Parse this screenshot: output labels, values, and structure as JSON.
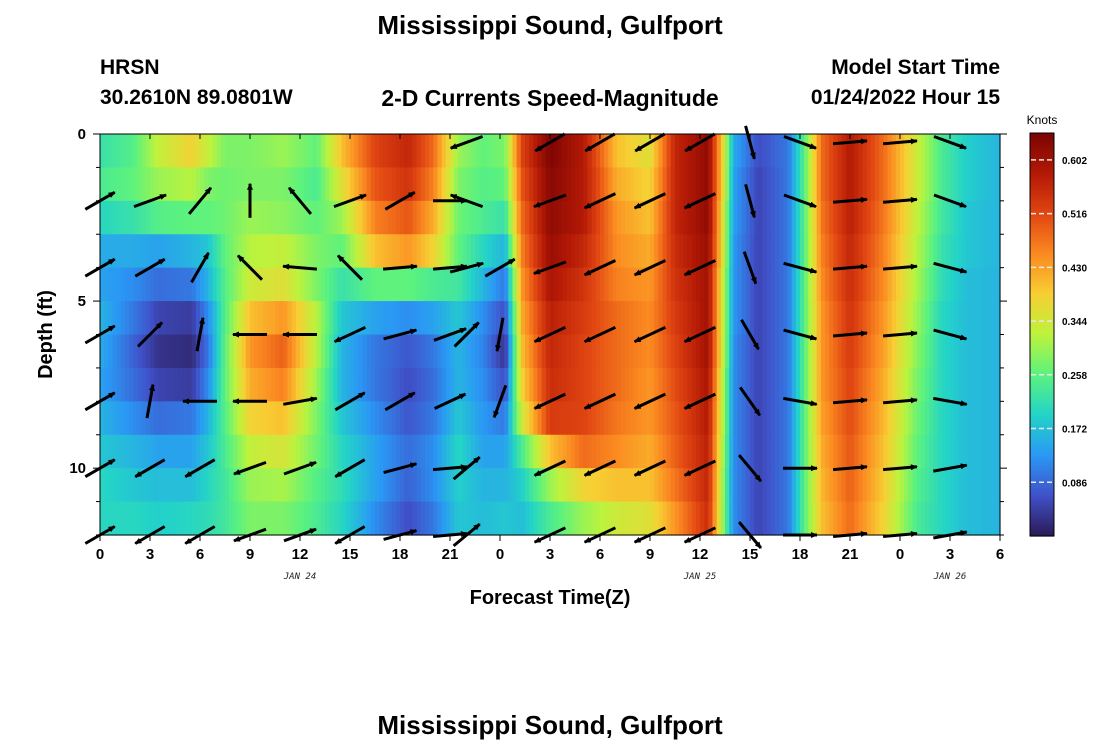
{
  "page": {
    "title_top": "Mississippi Sound, Gulfport",
    "title_bottom": "Mississippi Sound, Gulfport",
    "station": "HRSN",
    "coords": "30.2610N  89.0801W",
    "model_start_label": "Model Start Time",
    "model_start_value": "01/24/2022 Hour 15",
    "subtitle": "2-D Currents Speed-Magnitude"
  },
  "colors": {
    "colormap": [
      "#2b1a55",
      "#4051c9",
      "#2a98f5",
      "#23d3c8",
      "#5cf27e",
      "#bcf33d",
      "#f7cf33",
      "#fb8a21",
      "#e04512",
      "#b31905",
      "#7a0403"
    ]
  },
  "chart_data": {
    "type": "heatmap",
    "title": "2-D Currents Speed-Magnitude",
    "xlabel": "Forecast Time(Z)",
    "ylabel": "Depth (ft)",
    "x_range_hours": [
      0,
      54
    ],
    "x_ticks": [
      {
        "hour": 0,
        "label": "0"
      },
      {
        "hour": 3,
        "label": "3"
      },
      {
        "hour": 6,
        "label": "6"
      },
      {
        "hour": 9,
        "label": "9"
      },
      {
        "hour": 12,
        "label": "12"
      },
      {
        "hour": 15,
        "label": "15"
      },
      {
        "hour": 18,
        "label": "18"
      },
      {
        "hour": 21,
        "label": "21"
      },
      {
        "hour": 24,
        "label": "0"
      },
      {
        "hour": 27,
        "label": "3"
      },
      {
        "hour": 30,
        "label": "6"
      },
      {
        "hour": 33,
        "label": "9"
      },
      {
        "hour": 36,
        "label": "12"
      },
      {
        "hour": 39,
        "label": "15"
      },
      {
        "hour": 42,
        "label": "18"
      },
      {
        "hour": 45,
        "label": "21"
      },
      {
        "hour": 48,
        "label": "0"
      },
      {
        "hour": 51,
        "label": "3"
      },
      {
        "hour": 54,
        "label": "6"
      }
    ],
    "date_labels": [
      {
        "hour": 12,
        "label": "JAN 24"
      },
      {
        "hour": 36,
        "label": "JAN 25"
      },
      {
        "hour": 51,
        "label": "JAN 26"
      }
    ],
    "y_range_ft": [
      0,
      12
    ],
    "y_ticks": [
      {
        "depth": 0,
        "label": "0"
      },
      {
        "depth": 5,
        "label": "5"
      },
      {
        "depth": 10,
        "label": "10"
      }
    ],
    "colorbar": {
      "unit": "Knots",
      "min": 0.0,
      "max": 0.645,
      "ticks": [
        0.086,
        0.172,
        0.258,
        0.344,
        0.43,
        0.516,
        0.602
      ],
      "tick_labels": [
        "0.086",
        "0.172",
        "0.258",
        "0.344",
        "0.430",
        "0.516",
        "0.602"
      ]
    },
    "speed_keyframes_knots": [
      {
        "hour": 0,
        "speeds": [
          0.22,
          0.24,
          0.2,
          0.15,
          0.14,
          0.16,
          0.15,
          0.14,
          0.16,
          0.18,
          0.2,
          0.2
        ]
      },
      {
        "hour": 2,
        "speeds": [
          0.25,
          0.26,
          0.22,
          0.15,
          0.12,
          0.1,
          0.08,
          0.09,
          0.12,
          0.16,
          0.18,
          0.2
        ]
      },
      {
        "hour": 3.5,
        "speeds": [
          0.33,
          0.3,
          0.25,
          0.14,
          0.09,
          0.05,
          0.03,
          0.05,
          0.09,
          0.14,
          0.17,
          0.19
        ]
      },
      {
        "hour": 5.5,
        "speeds": [
          0.38,
          0.32,
          0.26,
          0.16,
          0.1,
          0.04,
          0.02,
          0.04,
          0.1,
          0.14,
          0.17,
          0.2
        ]
      },
      {
        "hour": 6.5,
        "speeds": [
          0.33,
          0.28,
          0.26,
          0.18,
          0.16,
          0.12,
          0.1,
          0.12,
          0.16,
          0.18,
          0.2,
          0.21
        ]
      },
      {
        "hour": 7.5,
        "speeds": [
          0.28,
          0.27,
          0.27,
          0.26,
          0.25,
          0.25,
          0.26,
          0.26,
          0.25,
          0.24,
          0.23,
          0.23
        ]
      },
      {
        "hour": 9,
        "speeds": [
          0.28,
          0.28,
          0.3,
          0.32,
          0.34,
          0.4,
          0.44,
          0.42,
          0.38,
          0.33,
          0.3,
          0.28
        ]
      },
      {
        "hour": 11,
        "speeds": [
          0.3,
          0.28,
          0.29,
          0.33,
          0.36,
          0.44,
          0.49,
          0.46,
          0.4,
          0.35,
          0.31,
          0.28
        ]
      },
      {
        "hour": 13,
        "speeds": [
          0.26,
          0.24,
          0.26,
          0.28,
          0.28,
          0.32,
          0.32,
          0.3,
          0.28,
          0.27,
          0.25,
          0.24
        ]
      },
      {
        "hour": 14.5,
        "speeds": [
          0.4,
          0.36,
          0.3,
          0.26,
          0.22,
          0.18,
          0.16,
          0.16,
          0.18,
          0.2,
          0.21,
          0.2
        ]
      },
      {
        "hour": 16.5,
        "speeds": [
          0.52,
          0.5,
          0.46,
          0.4,
          0.26,
          0.14,
          0.1,
          0.1,
          0.12,
          0.14,
          0.14,
          0.12
        ]
      },
      {
        "hour": 18.5,
        "speeds": [
          0.56,
          0.54,
          0.5,
          0.44,
          0.26,
          0.12,
          0.07,
          0.06,
          0.07,
          0.09,
          0.08,
          0.06
        ]
      },
      {
        "hour": 20,
        "speeds": [
          0.48,
          0.46,
          0.42,
          0.38,
          0.24,
          0.14,
          0.1,
          0.09,
          0.1,
          0.12,
          0.12,
          0.1
        ]
      },
      {
        "hour": 21.5,
        "speeds": [
          0.3,
          0.28,
          0.27,
          0.26,
          0.23,
          0.18,
          0.16,
          0.16,
          0.18,
          0.2,
          0.19,
          0.18
        ]
      },
      {
        "hour": 23,
        "speeds": [
          0.26,
          0.25,
          0.24,
          0.2,
          0.16,
          0.12,
          0.11,
          0.12,
          0.13,
          0.14,
          0.16,
          0.17
        ]
      },
      {
        "hour": 24.3,
        "speeds": [
          0.28,
          0.26,
          0.22,
          0.16,
          0.1,
          0.06,
          0.03,
          0.06,
          0.1,
          0.14,
          0.16,
          0.18
        ]
      },
      {
        "hour": 25.3,
        "speeds": [
          0.52,
          0.5,
          0.48,
          0.46,
          0.44,
          0.42,
          0.4,
          0.38,
          0.34,
          0.24,
          0.19,
          0.17
        ]
      },
      {
        "hour": 27,
        "speeds": [
          0.64,
          0.63,
          0.62,
          0.61,
          0.59,
          0.57,
          0.56,
          0.55,
          0.53,
          0.4,
          0.3,
          0.24
        ]
      },
      {
        "hour": 29,
        "speeds": [
          0.58,
          0.58,
          0.58,
          0.56,
          0.54,
          0.53,
          0.52,
          0.52,
          0.52,
          0.48,
          0.38,
          0.3
        ]
      },
      {
        "hour": 31,
        "speeds": [
          0.4,
          0.42,
          0.44,
          0.45,
          0.46,
          0.48,
          0.48,
          0.48,
          0.47,
          0.45,
          0.4,
          0.34
        ]
      },
      {
        "hour": 33,
        "speeds": [
          0.36,
          0.38,
          0.4,
          0.42,
          0.44,
          0.45,
          0.45,
          0.44,
          0.44,
          0.42,
          0.4,
          0.36
        ]
      },
      {
        "hour": 34.5,
        "speeds": [
          0.56,
          0.56,
          0.56,
          0.55,
          0.54,
          0.53,
          0.52,
          0.51,
          0.5,
          0.49,
          0.47,
          0.44
        ]
      },
      {
        "hour": 36.5,
        "speeds": [
          0.62,
          0.62,
          0.62,
          0.61,
          0.6,
          0.6,
          0.6,
          0.59,
          0.58,
          0.57,
          0.56,
          0.55
        ]
      },
      {
        "hour": 37.5,
        "speeds": [
          0.34,
          0.34,
          0.32,
          0.32,
          0.3,
          0.3,
          0.3,
          0.28,
          0.28,
          0.27,
          0.26,
          0.26
        ]
      },
      {
        "hour": 38,
        "speeds": [
          0.15,
          0.14,
          0.14,
          0.13,
          0.13,
          0.13,
          0.12,
          0.12,
          0.12,
          0.12,
          0.12,
          0.12
        ]
      },
      {
        "hour": 39.5,
        "speeds": [
          0.06,
          0.05,
          0.05,
          0.05,
          0.05,
          0.05,
          0.05,
          0.05,
          0.05,
          0.05,
          0.05,
          0.05
        ]
      },
      {
        "hour": 41.3,
        "speeds": [
          0.1,
          0.1,
          0.1,
          0.1,
          0.1,
          0.1,
          0.1,
          0.1,
          0.1,
          0.1,
          0.1,
          0.1
        ]
      },
      {
        "hour": 42.3,
        "speeds": [
          0.26,
          0.26,
          0.26,
          0.26,
          0.26,
          0.26,
          0.26,
          0.26,
          0.26,
          0.26,
          0.26,
          0.26
        ]
      },
      {
        "hour": 43.3,
        "speeds": [
          0.48,
          0.48,
          0.47,
          0.46,
          0.45,
          0.44,
          0.44,
          0.44,
          0.43,
          0.42,
          0.41,
          0.4
        ]
      },
      {
        "hour": 45,
        "speeds": [
          0.58,
          0.58,
          0.57,
          0.56,
          0.55,
          0.54,
          0.53,
          0.52,
          0.51,
          0.5,
          0.49,
          0.48
        ]
      },
      {
        "hour": 47,
        "speeds": [
          0.48,
          0.48,
          0.47,
          0.46,
          0.45,
          0.44,
          0.43,
          0.42,
          0.41,
          0.4,
          0.39,
          0.38
        ]
      },
      {
        "hour": 49,
        "speeds": [
          0.34,
          0.34,
          0.33,
          0.32,
          0.31,
          0.3,
          0.29,
          0.28,
          0.27,
          0.26,
          0.25,
          0.24
        ]
      },
      {
        "hour": 50.5,
        "speeds": [
          0.24,
          0.24,
          0.23,
          0.22,
          0.21,
          0.2,
          0.2,
          0.2,
          0.2,
          0.2,
          0.2,
          0.2
        ]
      },
      {
        "hour": 52,
        "speeds": [
          0.19,
          0.19,
          0.18,
          0.18,
          0.17,
          0.17,
          0.17,
          0.17,
          0.17,
          0.17,
          0.17,
          0.17
        ]
      },
      {
        "hour": 54,
        "speeds": [
          0.16,
          0.16,
          0.16,
          0.16,
          0.16,
          0.16,
          0.16,
          0.16,
          0.16,
          0.16,
          0.16,
          0.16
        ]
      }
    ],
    "arrow_depths_ft": [
      0.25,
      2,
      4,
      6,
      8,
      10,
      12
    ],
    "arrow_columns": [
      {
        "hour": 0,
        "angles_deg": [
          null,
          30,
          30,
          30,
          30,
          30,
          30
        ]
      },
      {
        "hour": 3,
        "angles_deg": [
          null,
          20,
          30,
          45,
          80,
          210,
          210
        ]
      },
      {
        "hour": 6,
        "angles_deg": [
          null,
          50,
          60,
          80,
          180,
          210,
          210
        ]
      },
      {
        "hour": 9,
        "angles_deg": [
          null,
          90,
          135,
          180,
          180,
          200,
          200
        ]
      },
      {
        "hour": 12,
        "angles_deg": [
          null,
          130,
          175,
          180,
          10,
          20,
          20
        ]
      },
      {
        "hour": 15,
        "angles_deg": [
          null,
          20,
          135,
          205,
          30,
          210,
          210
        ]
      },
      {
        "hour": 18,
        "angles_deg": [
          null,
          30,
          5,
          15,
          30,
          15,
          15
        ]
      },
      {
        "hour": 21,
        "angles_deg": [
          null,
          0,
          5,
          20,
          25,
          5,
          5
        ]
      },
      {
        "hour": 22,
        "angles_deg": [
          200,
          160,
          15,
          45,
          null,
          40,
          40
        ]
      },
      {
        "hour": 24,
        "angles_deg": [
          null,
          null,
          30,
          260,
          250,
          null,
          null
        ]
      },
      {
        "hour": 27,
        "angles_deg": [
          210,
          200,
          200,
          205,
          205,
          205,
          205
        ]
      },
      {
        "hour": 30,
        "angles_deg": [
          210,
          205,
          205,
          205,
          205,
          205,
          205
        ]
      },
      {
        "hour": 33,
        "angles_deg": [
          210,
          205,
          205,
          205,
          205,
          205,
          205
        ]
      },
      {
        "hour": 36,
        "angles_deg": [
          210,
          205,
          205,
          205,
          205,
          205,
          205
        ]
      },
      {
        "hour": 39,
        "angles_deg": [
          285,
          285,
          290,
          300,
          305,
          310,
          310
        ]
      },
      {
        "hour": 42,
        "angles_deg": [
          340,
          340,
          345,
          345,
          350,
          0,
          0
        ]
      },
      {
        "hour": 45,
        "angles_deg": [
          5,
          5,
          5,
          5,
          5,
          5,
          5
        ]
      },
      {
        "hour": 48,
        "angles_deg": [
          5,
          5,
          5,
          5,
          5,
          5,
          5
        ]
      },
      {
        "hour": 51,
        "angles_deg": [
          340,
          340,
          345,
          345,
          350,
          10,
          10
        ]
      }
    ]
  }
}
